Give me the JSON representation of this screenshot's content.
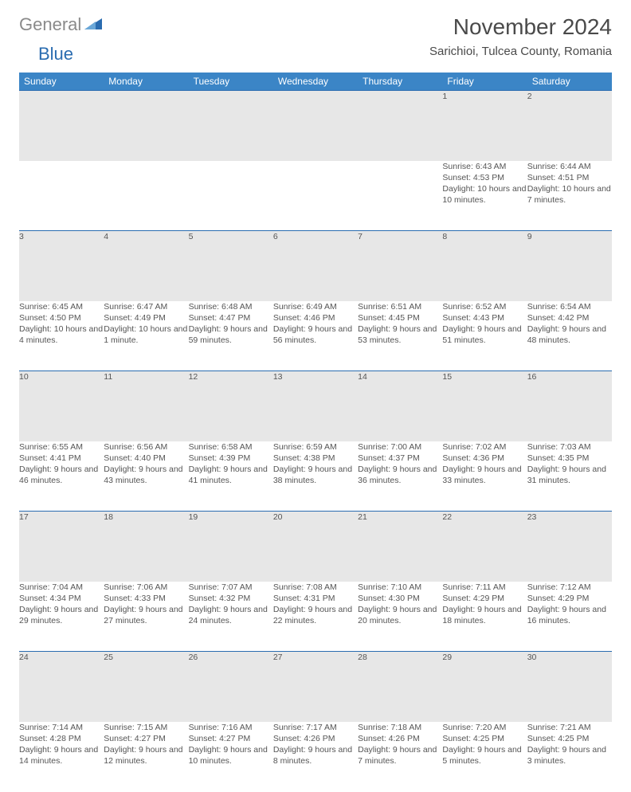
{
  "logo": {
    "gray": "General",
    "blue": "Blue"
  },
  "title": "November 2024",
  "location": "Sarichioi, Tulcea County, Romania",
  "colors": {
    "header_bg": "#3b85c6",
    "header_text": "#ffffff",
    "daynum_bg": "#e7e7e7",
    "border_top": "#2a6cb0",
    "text": "#555555",
    "logo_gray": "#8a8a8a",
    "logo_blue": "#2a6cb0"
  },
  "weekdays": [
    "Sunday",
    "Monday",
    "Tuesday",
    "Wednesday",
    "Thursday",
    "Friday",
    "Saturday"
  ],
  "weeks": [
    [
      null,
      null,
      null,
      null,
      null,
      {
        "n": "1",
        "sr": "6:43 AM",
        "ss": "4:53 PM",
        "dl": "10 hours and 10 minutes."
      },
      {
        "n": "2",
        "sr": "6:44 AM",
        "ss": "4:51 PM",
        "dl": "10 hours and 7 minutes."
      }
    ],
    [
      {
        "n": "3",
        "sr": "6:45 AM",
        "ss": "4:50 PM",
        "dl": "10 hours and 4 minutes."
      },
      {
        "n": "4",
        "sr": "6:47 AM",
        "ss": "4:49 PM",
        "dl": "10 hours and 1 minute."
      },
      {
        "n": "5",
        "sr": "6:48 AM",
        "ss": "4:47 PM",
        "dl": "9 hours and 59 minutes."
      },
      {
        "n": "6",
        "sr": "6:49 AM",
        "ss": "4:46 PM",
        "dl": "9 hours and 56 minutes."
      },
      {
        "n": "7",
        "sr": "6:51 AM",
        "ss": "4:45 PM",
        "dl": "9 hours and 53 minutes."
      },
      {
        "n": "8",
        "sr": "6:52 AM",
        "ss": "4:43 PM",
        "dl": "9 hours and 51 minutes."
      },
      {
        "n": "9",
        "sr": "6:54 AM",
        "ss": "4:42 PM",
        "dl": "9 hours and 48 minutes."
      }
    ],
    [
      {
        "n": "10",
        "sr": "6:55 AM",
        "ss": "4:41 PM",
        "dl": "9 hours and 46 minutes."
      },
      {
        "n": "11",
        "sr": "6:56 AM",
        "ss": "4:40 PM",
        "dl": "9 hours and 43 minutes."
      },
      {
        "n": "12",
        "sr": "6:58 AM",
        "ss": "4:39 PM",
        "dl": "9 hours and 41 minutes."
      },
      {
        "n": "13",
        "sr": "6:59 AM",
        "ss": "4:38 PM",
        "dl": "9 hours and 38 minutes."
      },
      {
        "n": "14",
        "sr": "7:00 AM",
        "ss": "4:37 PM",
        "dl": "9 hours and 36 minutes."
      },
      {
        "n": "15",
        "sr": "7:02 AM",
        "ss": "4:36 PM",
        "dl": "9 hours and 33 minutes."
      },
      {
        "n": "16",
        "sr": "7:03 AM",
        "ss": "4:35 PM",
        "dl": "9 hours and 31 minutes."
      }
    ],
    [
      {
        "n": "17",
        "sr": "7:04 AM",
        "ss": "4:34 PM",
        "dl": "9 hours and 29 minutes."
      },
      {
        "n": "18",
        "sr": "7:06 AM",
        "ss": "4:33 PM",
        "dl": "9 hours and 27 minutes."
      },
      {
        "n": "19",
        "sr": "7:07 AM",
        "ss": "4:32 PM",
        "dl": "9 hours and 24 minutes."
      },
      {
        "n": "20",
        "sr": "7:08 AM",
        "ss": "4:31 PM",
        "dl": "9 hours and 22 minutes."
      },
      {
        "n": "21",
        "sr": "7:10 AM",
        "ss": "4:30 PM",
        "dl": "9 hours and 20 minutes."
      },
      {
        "n": "22",
        "sr": "7:11 AM",
        "ss": "4:29 PM",
        "dl": "9 hours and 18 minutes."
      },
      {
        "n": "23",
        "sr": "7:12 AM",
        "ss": "4:29 PM",
        "dl": "9 hours and 16 minutes."
      }
    ],
    [
      {
        "n": "24",
        "sr": "7:14 AM",
        "ss": "4:28 PM",
        "dl": "9 hours and 14 minutes."
      },
      {
        "n": "25",
        "sr": "7:15 AM",
        "ss": "4:27 PM",
        "dl": "9 hours and 12 minutes."
      },
      {
        "n": "26",
        "sr": "7:16 AM",
        "ss": "4:27 PM",
        "dl": "9 hours and 10 minutes."
      },
      {
        "n": "27",
        "sr": "7:17 AM",
        "ss": "4:26 PM",
        "dl": "9 hours and 8 minutes."
      },
      {
        "n": "28",
        "sr": "7:18 AM",
        "ss": "4:26 PM",
        "dl": "9 hours and 7 minutes."
      },
      {
        "n": "29",
        "sr": "7:20 AM",
        "ss": "4:25 PM",
        "dl": "9 hours and 5 minutes."
      },
      {
        "n": "30",
        "sr": "7:21 AM",
        "ss": "4:25 PM",
        "dl": "9 hours and 3 minutes."
      }
    ]
  ]
}
